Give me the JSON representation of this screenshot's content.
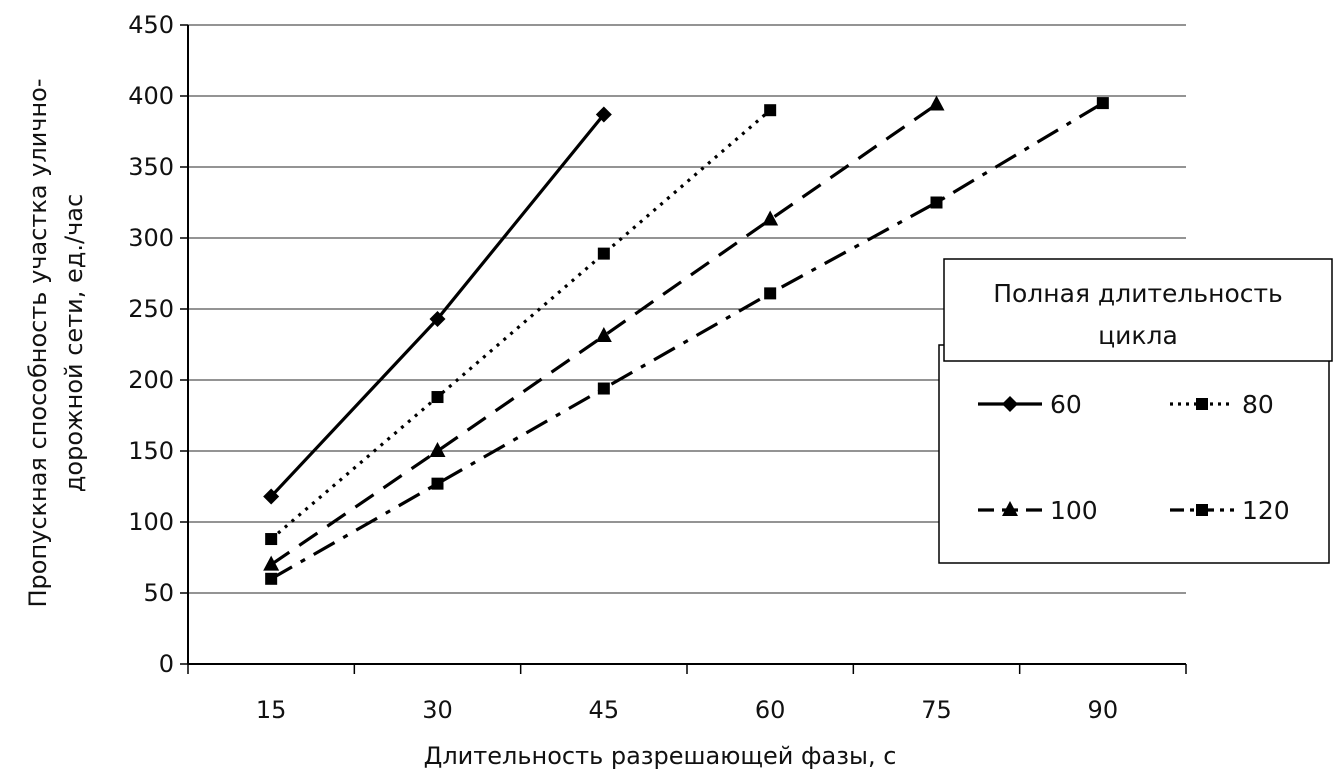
{
  "chart_data": {
    "type": "line",
    "title": "",
    "xlabel": "Длительность разрешающей фазы, с",
    "ylabel_lines": [
      "Пропускная способность участка улично-",
      "дорожной сети, ед./час"
    ],
    "x_categories": [
      "15",
      "30",
      "45",
      "60",
      "75",
      "90"
    ],
    "ylim": [
      0,
      450
    ],
    "yticks": [
      0,
      50,
      100,
      150,
      200,
      250,
      300,
      350,
      400,
      450
    ],
    "grid": "horizontal",
    "legend": {
      "title_lines": [
        "Полная длительность",
        "цикла"
      ],
      "placement": "right"
    },
    "series": [
      {
        "name": "60",
        "style": "solid",
        "marker": "diamond",
        "x": [
          15,
          30,
          45
        ],
        "values": [
          118,
          243,
          387
        ]
      },
      {
        "name": "80",
        "style": "dotted",
        "marker": "square",
        "x": [
          15,
          30,
          45,
          60
        ],
        "values": [
          88,
          188,
          289,
          390
        ]
      },
      {
        "name": "100",
        "style": "dashed",
        "marker": "triangle",
        "x": [
          15,
          30,
          45,
          60,
          75
        ],
        "values": [
          70,
          150,
          231,
          313,
          394
        ]
      },
      {
        "name": "120",
        "style": "dashdot",
        "marker": "square",
        "x": [
          15,
          30,
          45,
          60,
          75,
          90
        ],
        "values": [
          60,
          127,
          194,
          261,
          325,
          395
        ]
      }
    ]
  }
}
